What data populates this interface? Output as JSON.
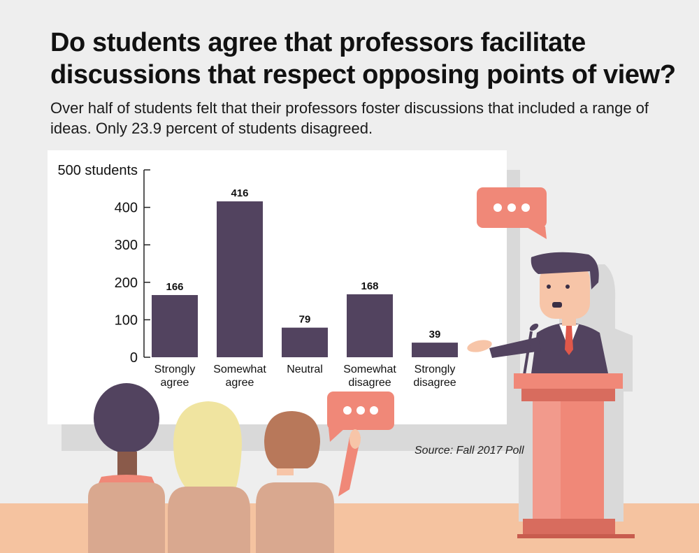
{
  "title": "Do students agree that professors facilitate discussions that respect opposing points of view?",
  "subtitle": "Over half of students felt that their professors foster discussions that included a range of ideas. Only 23.9 percent of students disagreed.",
  "source": "Source: Fall 2017 Poll",
  "colors": {
    "bar": "#52435f",
    "background": "#eeeeee",
    "board": "#ffffff",
    "floor": "#f5c3a0",
    "speech_bubble": "#f08878",
    "podium": "#f08878"
  },
  "chart_data": {
    "type": "bar",
    "categories": [
      [
        "Strongly",
        "agree"
      ],
      [
        "Somewhat",
        "agree"
      ],
      [
        "Neutral"
      ],
      [
        "Somewhat",
        "disagree"
      ],
      [
        "Strongly",
        "disagree"
      ]
    ],
    "values": [
      166,
      416,
      79,
      168,
      39
    ],
    "ylabel": "",
    "ylim": [
      0,
      500
    ],
    "yticks": [
      0,
      100,
      200,
      300,
      400,
      500
    ],
    "ytick_labels": [
      "0",
      "100",
      "200",
      "300",
      "400",
      "500 students"
    ],
    "grid": false,
    "data_labels": true
  }
}
